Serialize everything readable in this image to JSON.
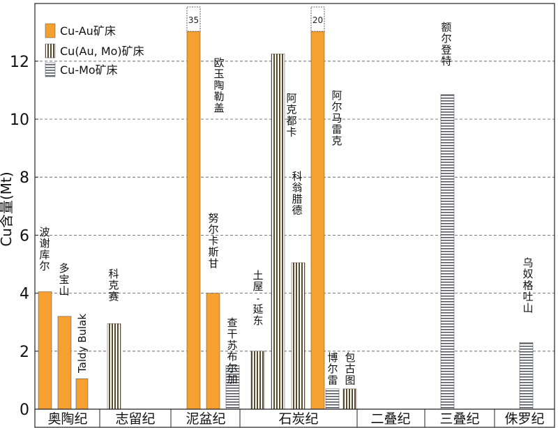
{
  "chart_data": {
    "type": "bar",
    "ylabel": "Cu含量(Mt)",
    "ylim": [
      0,
      14
    ],
    "yticks": [
      0,
      2,
      4,
      6,
      8,
      10,
      12
    ],
    "grid": "dashed-horizontal",
    "legend_position": "top-left",
    "legend": [
      {
        "label": "Cu-Au矿床",
        "pattern": "solid"
      },
      {
        "label": "Cu(Au, Mo)矿床",
        "pattern": "vertical"
      },
      {
        "label": "Cu-Mo矿床",
        "pattern": "horizontal"
      }
    ],
    "periods": [
      "奥陶纪",
      "志留纪",
      "泥盆纪",
      "石炭纪",
      "二叠纪",
      "三叠纪",
      "侏罗纪"
    ],
    "deposits": [
      {
        "name": "波谢库尔",
        "type": "Cu-Au",
        "value": 4.05,
        "period": "奥陶纪"
      },
      {
        "name": "多宝山",
        "type": "Cu-Au",
        "value": 3.2,
        "period": "奥陶纪"
      },
      {
        "name": "Taldy Bulak",
        "type": "Cu-Au",
        "value": 1.05,
        "period": "奥陶纪"
      },
      {
        "name": "科克赛",
        "type": "Cu(Au, Mo)",
        "value": 2.95,
        "period": "志留纪"
      },
      {
        "name": "欧玉陶勒盖",
        "type": "Cu-Au",
        "value": 35,
        "period": "泥盆纪",
        "break_label": "35"
      },
      {
        "name": "努尔卡斯甘",
        "type": "Cu-Au",
        "value": 4.0,
        "period": "泥盆纪"
      },
      {
        "name": "查干苏布尔加",
        "type": "Cu-Mo",
        "value": 1.5,
        "period": "泥盆纪"
      },
      {
        "name": "土屋-延东",
        "type": "Cu(Au, Mo)",
        "value": 2.0,
        "period": "石炭纪"
      },
      {
        "name": "阿克都卡",
        "type": "Cu(Au, Mo)",
        "value": 12.25,
        "period": "石炭纪"
      },
      {
        "name": "科翁腊德",
        "type": "Cu(Au, Mo)",
        "value": 5.05,
        "period": "石炭纪"
      },
      {
        "name": "阿尔马雷克",
        "type": "Cu-Au",
        "value": 20,
        "period": "石炭纪",
        "break_label": "20"
      },
      {
        "name": "博尔雷",
        "type": "Cu-Mo",
        "value": 0.7,
        "period": "石炭纪"
      },
      {
        "name": "包古图",
        "type": "Cu(Au, Mo)",
        "value": 0.7,
        "period": "石炭纪"
      },
      {
        "name": "额尔登特",
        "type": "Cu-Mo",
        "value": 10.85,
        "period": "三叠纪"
      },
      {
        "name": "乌奴格吐山",
        "type": "Cu-Mo",
        "value": 2.3,
        "period": "侏罗纪"
      }
    ]
  },
  "colors": {
    "cu_au": "#f5a030",
    "frame": "#222222",
    "grid": "#555555"
  }
}
